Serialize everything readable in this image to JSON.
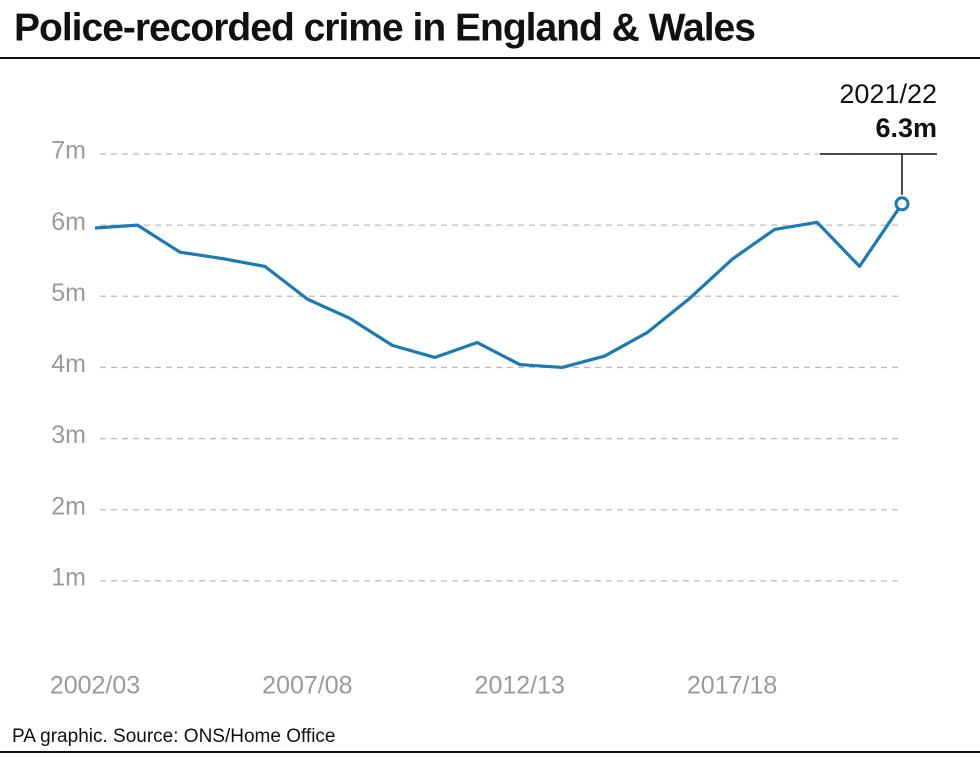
{
  "chart_data": {
    "type": "line",
    "title": "Police-recorded crime in England & Wales",
    "source": "PA graphic. Source: ONS/Home Office",
    "categories": [
      "2002/03",
      null,
      null,
      null,
      null,
      "2007/08",
      null,
      null,
      null,
      null,
      "2012/13",
      null,
      null,
      null,
      null,
      "2017/18",
      null,
      null,
      null,
      null
    ],
    "series": [
      {
        "color": "#1a7ab5",
        "values": [
          5.96,
          6.0,
          5.62,
          5.53,
          5.42,
          4.96,
          4.69,
          4.31,
          4.14,
          4.35,
          4.04,
          4.0,
          4.16,
          4.49,
          4.97,
          5.52,
          5.94,
          6.04,
          5.42,
          6.3
        ],
        "value_labels": [
          null,
          null,
          null,
          null,
          null,
          null,
          null,
          null,
          null,
          null,
          null,
          null,
          null,
          null,
          null,
          null,
          null,
          null,
          null,
          "6.3m"
        ]
      }
    ],
    "annotation": "2021/22",
    "ylim": [
      0,
      7
    ],
    "yticks": [
      {
        "value": 1,
        "label": "1m"
      },
      {
        "value": 2,
        "label": "2m"
      },
      {
        "value": 3,
        "label": "3m"
      },
      {
        "value": 4,
        "label": "4m"
      },
      {
        "value": 5,
        "label": "5m"
      },
      {
        "value": 6,
        "label": "6m"
      },
      {
        "value": 7,
        "label": "7m"
      }
    ],
    "grid": true
  }
}
